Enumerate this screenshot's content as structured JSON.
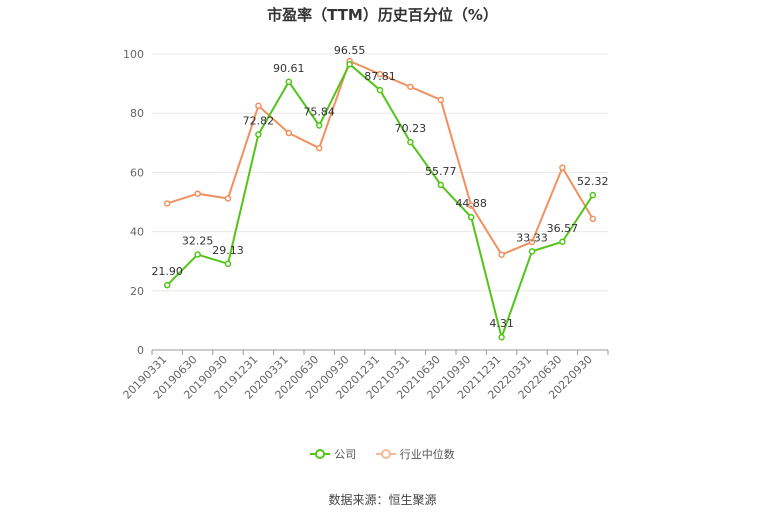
{
  "chart_data": {
    "type": "line",
    "title": "市盈率（TTM）历史百分位（%）",
    "categories": [
      "20190331",
      "20190630",
      "20190930",
      "20191231",
      "20200331",
      "20200630",
      "20200930",
      "20201231",
      "20210331",
      "20210630",
      "20210930",
      "20211231",
      "20220331",
      "20220630",
      "20220930"
    ],
    "ylim": [
      0,
      100
    ],
    "yticks": [
      0,
      20,
      40,
      60,
      80,
      100
    ],
    "grid": true,
    "legend_position": "bottom",
    "series": [
      {
        "name": "公司",
        "color": "#52c41a",
        "values": [
          21.9,
          32.25,
          29.13,
          72.82,
          90.61,
          75.84,
          96.55,
          87.81,
          70.23,
          55.77,
          44.88,
          4.31,
          33.33,
          36.57,
          52.32
        ],
        "labels": [
          "21.90",
          "32.25",
          "29.13",
          "72.82",
          "90.61",
          "75.84",
          "96.55",
          "87.81",
          "70.23",
          "55.77",
          "44.88",
          "4.31",
          "33.33",
          "36.57",
          "52.32"
        ]
      },
      {
        "name": "行业中位数",
        "color": "#f0915f",
        "values": [
          49.5,
          52.8,
          51.2,
          82.5,
          73.3,
          68.2,
          97.6,
          93.2,
          88.9,
          84.5,
          48.8,
          32.2,
          36.5,
          61.6,
          44.3
        ]
      }
    ]
  },
  "source": "数据来源：恒生聚源"
}
